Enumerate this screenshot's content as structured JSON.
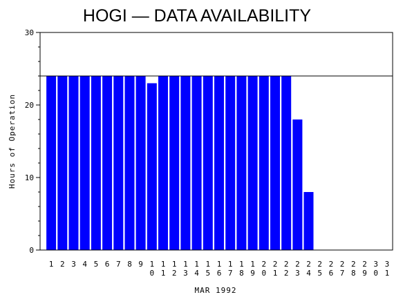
{
  "chart_data": {
    "type": "bar",
    "title": "HOGI — DATA AVAILABILITY",
    "xlabel": "MAR 1992",
    "ylabel": "Hours of Operation",
    "ylim": [
      0,
      30
    ],
    "yticks": [
      "0",
      "10",
      "20",
      "30"
    ],
    "reference_line": 24,
    "categories": [
      "1",
      "2",
      "3",
      "4",
      "5",
      "6",
      "7",
      "8",
      "9",
      "10",
      "11",
      "12",
      "13",
      "14",
      "15",
      "16",
      "17",
      "18",
      "19",
      "20",
      "21",
      "22",
      "23",
      "24",
      "25",
      "26",
      "27",
      "28",
      "29",
      "30",
      "31"
    ],
    "values": [
      24,
      24,
      24,
      24,
      24,
      24,
      24,
      24,
      24,
      23,
      24,
      24,
      24,
      24,
      24,
      24,
      24,
      24,
      24,
      24,
      24,
      24,
      18,
      8,
      0,
      0,
      0,
      0,
      0,
      0,
      0
    ],
    "bar_color": "#0000ff",
    "grid": false
  }
}
